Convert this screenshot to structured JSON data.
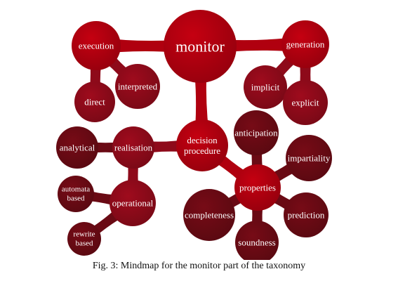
{
  "colors": {
    "primary": "#b0000f",
    "secondary": "#8e0a1a",
    "tertiary": "#6a0a14"
  },
  "nodes": {
    "monitor": "monitor",
    "execution": "execution",
    "direct": "direct",
    "interpreted": "interpreted",
    "generation": "generation",
    "implicit": "implicit",
    "explicit": "explicit",
    "decision_procedure": [
      "decision",
      "procedure"
    ],
    "realisation": "realisation",
    "analytical": "analytical",
    "operational": "operational",
    "automata_based": [
      "automata",
      "based"
    ],
    "rewrite_based": [
      "rewrite",
      "based"
    ],
    "properties": "properties",
    "anticipation": "anticipation",
    "impartiality": "impartiality",
    "prediction": "prediction",
    "soundness": "soundness",
    "completeness": "completeness"
  },
  "caption": "Fig. 3: Mindmap for the monitor part of the taxonomy"
}
